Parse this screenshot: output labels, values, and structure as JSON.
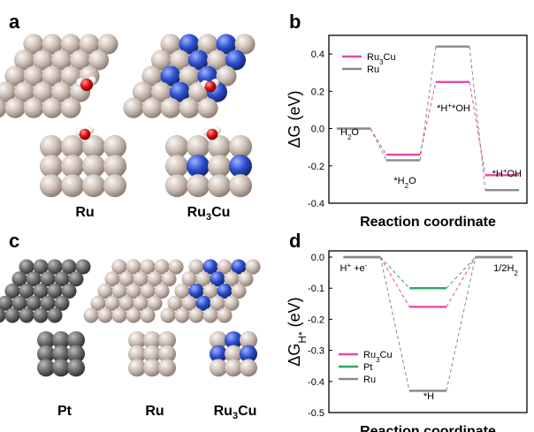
{
  "panel_labels": [
    "a",
    "b",
    "c",
    "d"
  ],
  "structure_labels": {
    "a_left": "Ru",
    "a_right": "Ru3Cu",
    "c_left": "Pt",
    "c_mid": "Ru",
    "c_right": "Ru3Cu"
  },
  "atom_colors": {
    "ru": "#cdbfb6",
    "cu": "#2b4fcf",
    "pt": "#6d6d6d",
    "o": "#e01010",
    "h": "#f4f4f4"
  },
  "chart_data": [
    {
      "type": "line",
      "panel": "b",
      "xlabel": "Reaction coordinate",
      "ylabel": "ΔG (eV)",
      "ylim": [
        -0.4,
        0.5
      ],
      "yticks": [
        -0.4,
        -0.2,
        0.0,
        0.2,
        0.4
      ],
      "steps": [
        "H2O",
        "*H2O",
        "*H+*OH",
        "*H+OH"
      ],
      "step_annotations": [
        "H2O",
        "*H2O",
        "*H+*OH",
        "*H+OH"
      ],
      "legend_position": "top-left",
      "series": [
        {
          "name": "Ru3Cu",
          "color": "#e64aa6",
          "values": [
            0.0,
            -0.14,
            0.25,
            -0.25
          ]
        },
        {
          "name": "Ru",
          "color": "#8a8a8a",
          "values": [
            0.0,
            -0.17,
            0.44,
            -0.33
          ]
        }
      ]
    },
    {
      "type": "line",
      "panel": "d",
      "xlabel": "Reaction coordinate",
      "ylabel": "ΔGH* (eV)",
      "ylim": [
        -0.5,
        0.02
      ],
      "yticks": [
        -0.5,
        -0.4,
        -0.3,
        -0.2,
        -0.1,
        0.0
      ],
      "steps": [
        "H++e-",
        "*H",
        "1/2H2"
      ],
      "step_annotations": [
        "H+ +e-",
        "*H",
        "1/2H2"
      ],
      "legend_position": "bottom-left",
      "series": [
        {
          "name": "Ru3Cu",
          "color": "#e64aa6",
          "values": [
            0.0,
            -0.16,
            0.0
          ]
        },
        {
          "name": "Pt",
          "color": "#2fa86a",
          "values": [
            0.0,
            -0.1,
            0.0
          ]
        },
        {
          "name": "Ru",
          "color": "#8a8a8a",
          "values": [
            0.0,
            -0.43,
            0.0
          ]
        }
      ]
    }
  ]
}
